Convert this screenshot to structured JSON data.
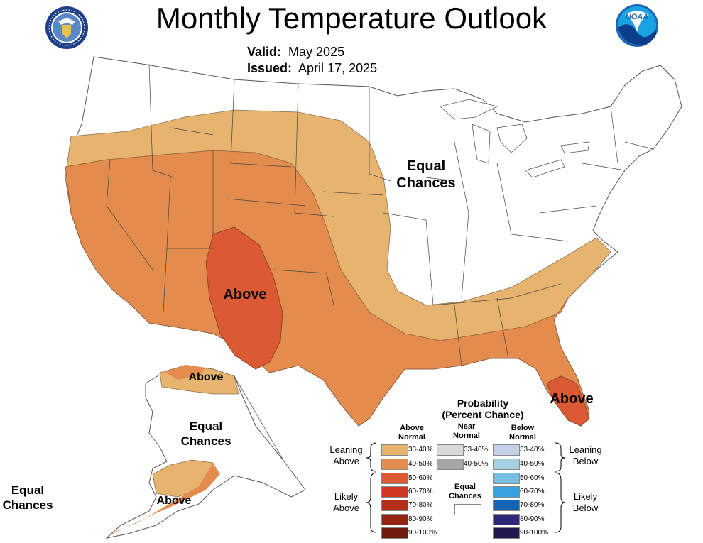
{
  "title": "Monthly Temperature Outlook",
  "valid_label": "Valid:",
  "valid_value": "May 2025",
  "issued_label": "Issued:",
  "issued_value": "April 17, 2025",
  "map_labels": {
    "conus_equal": [
      "Equal",
      "Chances"
    ],
    "conus_above": "Above",
    "florida_above": "Above",
    "alaska_north_above": "Above",
    "alaska_equal": [
      "Equal",
      "Chances"
    ],
    "alaska_south_above": "Above",
    "aleutian_equal": [
      "Equal",
      "Chances"
    ]
  },
  "legend": {
    "title": [
      "Probability",
      "(Percent Chance)"
    ],
    "col_above": [
      "Above",
      "Normal"
    ],
    "col_near": [
      "Near",
      "Normal"
    ],
    "col_below": [
      "Below",
      "Normal"
    ],
    "leaning_above": [
      "Leaning",
      "Above"
    ],
    "likely_above": [
      "Likely",
      "Above"
    ],
    "leaning_below": [
      "Leaning",
      "Below"
    ],
    "likely_below": [
      "Likely",
      "Below"
    ],
    "equal_chances": [
      "Equal",
      "Chances"
    ],
    "above": [
      {
        "label": "33-40%",
        "color": "#E6B46E"
      },
      {
        "label": "40-50%",
        "color": "#E38C4E"
      },
      {
        "label": "50-60%",
        "color": "#DC5A33"
      },
      {
        "label": "60-70%",
        "color": "#D0381F"
      },
      {
        "label": "70-80%",
        "color": "#B52E17"
      },
      {
        "label": "80-90%",
        "color": "#932410"
      },
      {
        "label": "90-100%",
        "color": "#6E1A09"
      }
    ],
    "near": [
      {
        "label": "33-40%",
        "color": "#D9D9D9"
      },
      {
        "label": "40-50%",
        "color": "#A6A6A6"
      }
    ],
    "below": [
      {
        "label": "33-40%",
        "color": "#C6D0E8"
      },
      {
        "label": "40-50%",
        "color": "#A7CFE3"
      },
      {
        "label": "50-60%",
        "color": "#78BDE3"
      },
      {
        "label": "60-70%",
        "color": "#36A3DE"
      },
      {
        "label": "70-80%",
        "color": "#1464B4"
      },
      {
        "label": "80-90%",
        "color": "#2E2878"
      },
      {
        "label": "90-100%",
        "color": "#1E1A50"
      }
    ]
  }
}
